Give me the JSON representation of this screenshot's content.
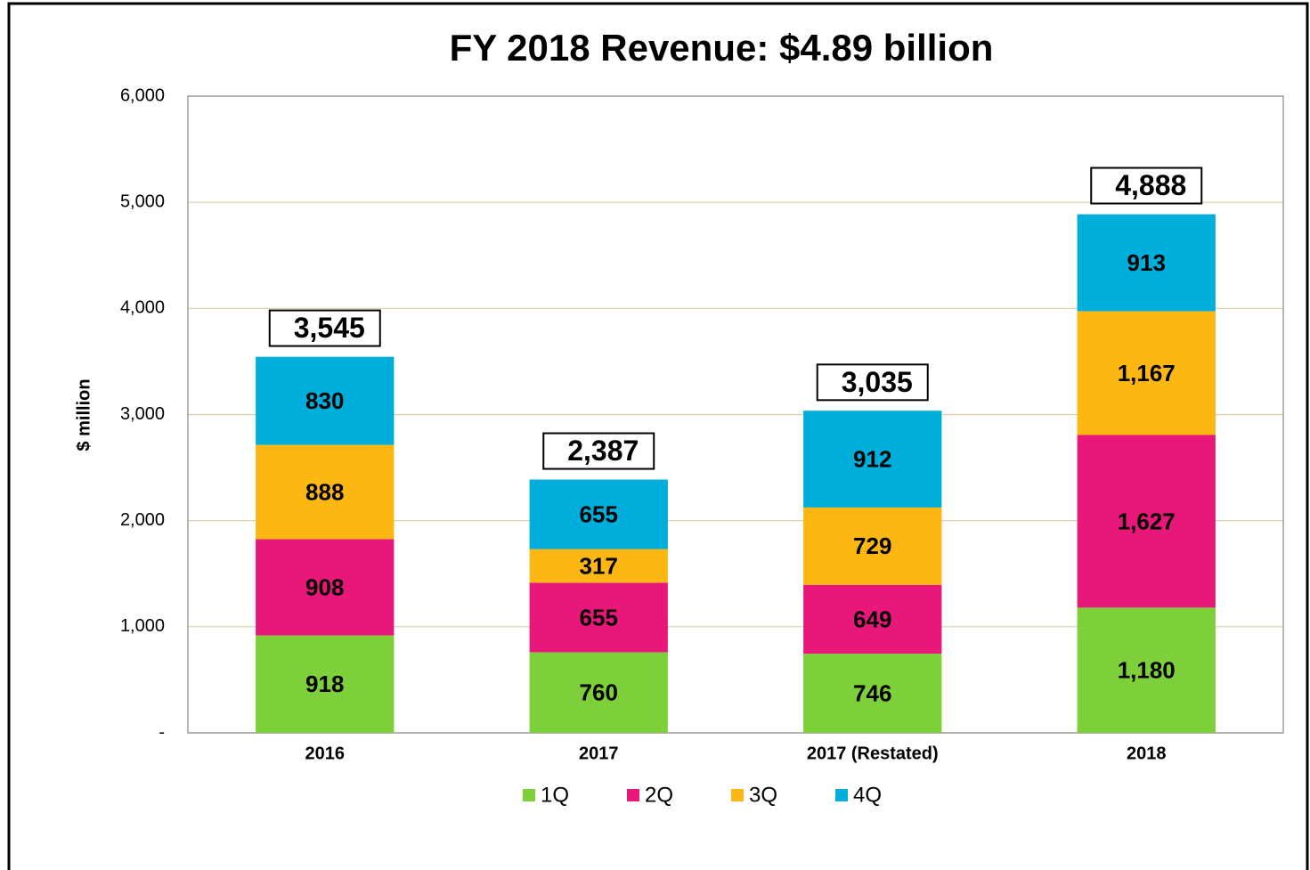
{
  "chart_data": {
    "type": "stacked_bar",
    "title": "FY 2018 Revenue: $4.89 billion",
    "ylabel": "$ million",
    "categories": [
      "2016",
      "2017",
      "2017 (Restated)",
      "2018"
    ],
    "series": [
      {
        "name": "1Q",
        "color": "#7ed03b",
        "values": [
          918,
          760,
          746,
          1180
        ],
        "value_labels": [
          "918",
          "760",
          "746",
          "1,180"
        ]
      },
      {
        "name": "2Q",
        "color": "#e8177a",
        "values": [
          908,
          655,
          649,
          1627
        ],
        "value_labels": [
          "908",
          "655",
          "649",
          "1,627"
        ]
      },
      {
        "name": "3Q",
        "color": "#fdb713",
        "values": [
          888,
          317,
          729,
          1167
        ],
        "value_labels": [
          "888",
          "317",
          "729",
          "1,167"
        ]
      },
      {
        "name": "4Q",
        "color": "#00aedb",
        "values": [
          830,
          655,
          912,
          913
        ],
        "value_labels": [
          "830",
          "655",
          "912",
          "913"
        ]
      }
    ],
    "totals": {
      "values": [
        3545,
        2387,
        3035,
        4888
      ],
      "value_labels": [
        "3,545",
        "2,387",
        "3,035",
        "4,888"
      ]
    },
    "ylim": [
      0,
      6000
    ],
    "yticks": [
      {
        "value": 0,
        "label": "-"
      },
      {
        "value": 1000,
        "label": "1,000"
      },
      {
        "value": 2000,
        "label": "2,000"
      },
      {
        "value": 3000,
        "label": "3,000"
      },
      {
        "value": 4000,
        "label": "4,000"
      },
      {
        "value": 5000,
        "label": "5,000"
      },
      {
        "value": 6000,
        "label": "6,000"
      }
    ],
    "grid": true,
    "legend": "bottom"
  }
}
